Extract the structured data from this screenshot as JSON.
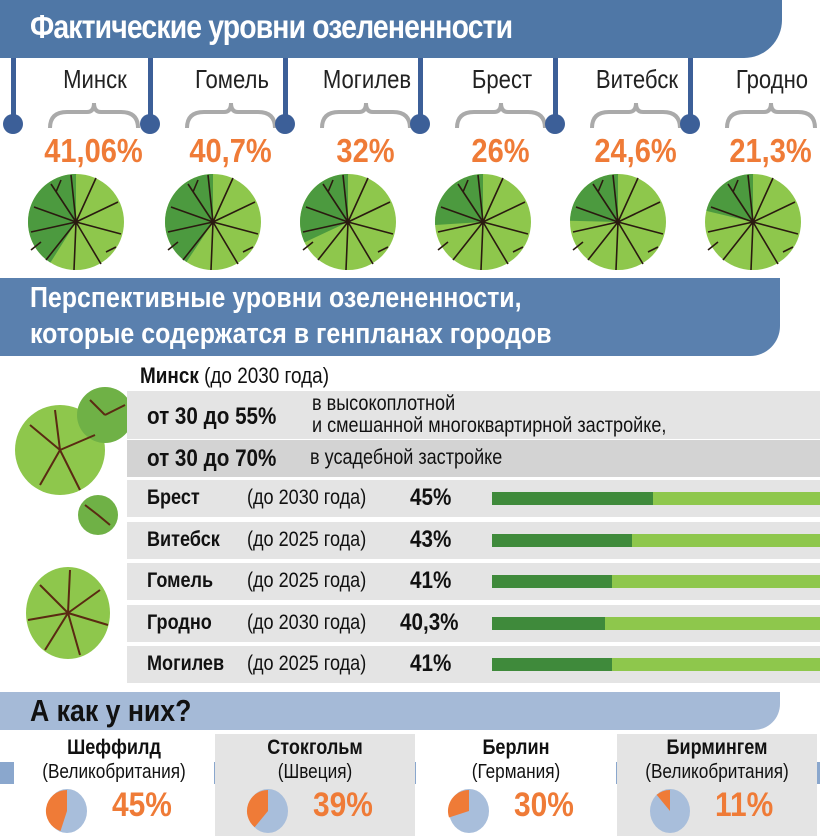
{
  "section1": {
    "title": "Фактические уровни озелененности"
  },
  "section2": {
    "title_line1": "Перспективные уровни озелененности,",
    "title_line2": "которые содержатся в генпланах городов"
  },
  "minsk": {
    "city": "Минск",
    "period": "(до 2030 года)",
    "range1": "от 30 до 55%",
    "desc1_line1": "в высокоплотной",
    "desc1_line2": "и смешанной многоквартирной застройке,",
    "range2": "от 30 до 70%",
    "desc2": "в усадебной застройке"
  },
  "section3": {
    "title": "А как у них?"
  },
  "colors": {
    "header_dark": "#4f77a6",
    "header_light": "#a5bad7",
    "orange": "#ef7b37",
    "green_dark": "#3f8a3b",
    "green_light": "#8ec74c",
    "pie_blue": "#a8bedb"
  },
  "chart_data": [
    {
      "type": "pie",
      "title": "Фактические уровни озелененности",
      "categories": [
        "Минск",
        "Гомель",
        "Могилев",
        "Брест",
        "Витебск",
        "Гродно"
      ],
      "values": [
        41.06,
        40.7,
        32,
        26,
        24.6,
        21.3
      ],
      "labels": [
        "41,06%",
        "40,7%",
        "32%",
        "26%",
        "24,6%",
        "21,3%"
      ]
    },
    {
      "type": "bar",
      "title": "Перспективные уровни озелененности",
      "categories": [
        "Брест",
        "Витебск",
        "Гомель",
        "Гродно",
        "Могилев"
      ],
      "periods": [
        "(до 2030 года)",
        "(до 2025 года)",
        "(до 2025 года)",
        "(до 2030 года)",
        "(до 2025 года)"
      ],
      "values": [
        45,
        43,
        41,
        40.3,
        41
      ],
      "labels": [
        "45%",
        "43%",
        "41%",
        "40,3%",
        "41%"
      ]
    },
    {
      "type": "pie",
      "title": "А как у них?",
      "categories": [
        "Шеффилд",
        "Стокгольм",
        "Берлин",
        "Бирмингем"
      ],
      "countries": [
        "(Великобритания)",
        "(Швеция)",
        "(Германия)",
        "(Великобритания)"
      ],
      "values": [
        45,
        39,
        30,
        11
      ],
      "labels": [
        "45%",
        "39%",
        "30%",
        "11%"
      ]
    }
  ]
}
